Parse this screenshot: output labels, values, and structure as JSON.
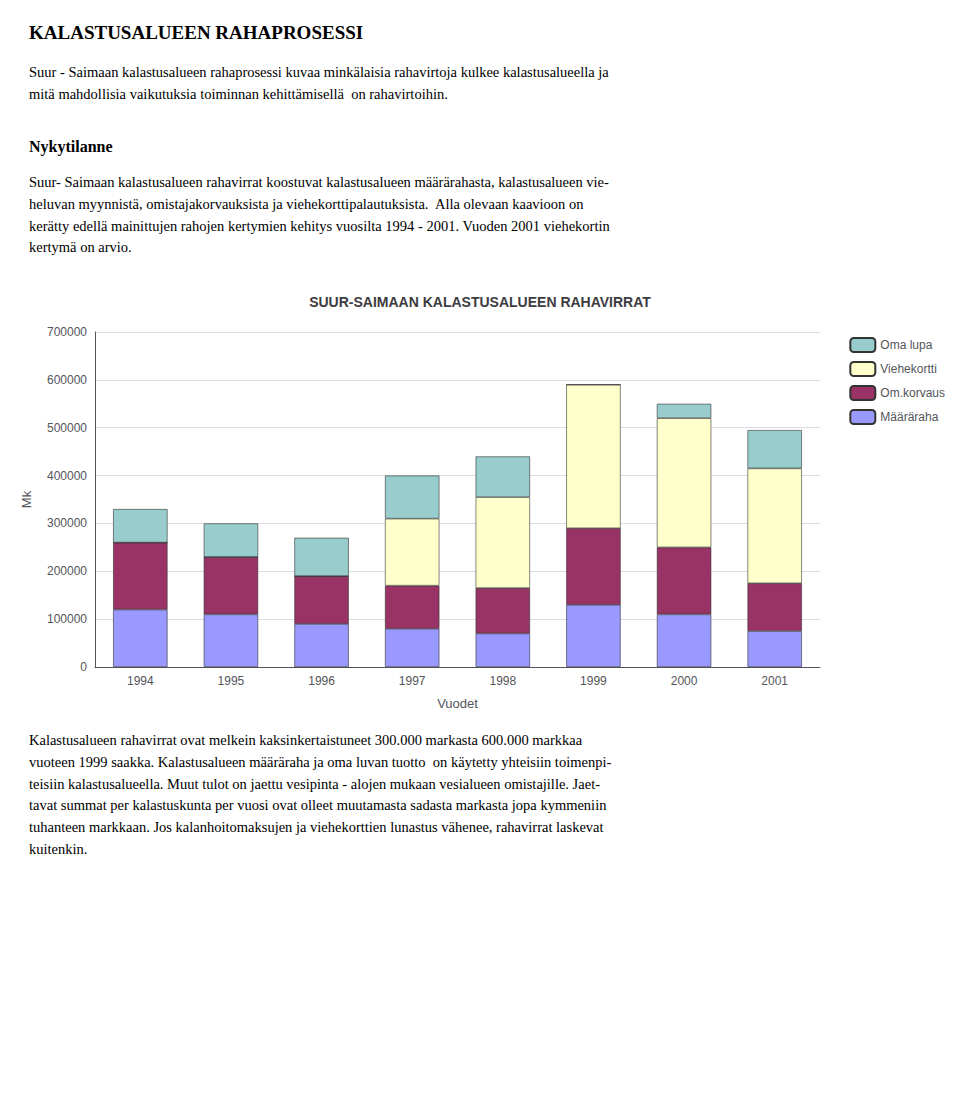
{
  "page_title": "KALASTUSALUEEN RAHAPROSESSI",
  "para1": "Suur - Saimaan kalastusalueen rahaprosessi kuvaa minkälaisia rahavirtoja kulkee kalastusalueella ja\nmitä mahdollisia vaikutuksia toiminnan kehittämisellä  on rahavirtoihin.",
  "section_title": "Nykytilanne",
  "para2": "Suur- Saimaan kalastusalueen rahavirrat koostuvat kalastusalueen määrärahasta, kalastusalueen vie-\nheluvan myynnistä, omistajakorvauksista ja viehekorttipalautuksista.  Alla olevaan kaavioon on\nkerätty edellä mainittujen rahojen kertymien kehitys vuosilta 1994 - 2001. Vuoden 2001 viehekortin\nkertymä on arvio.",
  "para3": "Kalastusalueen rahavirrat ovat melkein kaksinkertaistuneet 300.000 markasta 600.000 markkaa\nvuoteen 1999 saakka. Kalastusalueen määräraha ja oma luvan tuotto  on käytetty yhteisiin toimenpi-\nteisiin kalastusalueella. Muut tulot on jaettu vesipinta - alojen mukaan vesialueen omistajille. Jaet-\ntavat summat per kalastuskunta per vuosi ovat olleet muutamasta sadasta markasta jopa kymmeniin\ntuhanteen markkaan. Jos kalanhoitomaksujen ja viehekorttien lunastus vähenee, rahavirrat laskevat\nkuitenkin.",
  "chart_data": {
    "type": "bar",
    "stacked": true,
    "title": "SUUR-SAIMAAN KALASTUSALUEEN RAHAVIRRAT",
    "xlabel": "Vuodet",
    "ylabel": "Mk",
    "categories": [
      "1994",
      "1995",
      "1996",
      "1997",
      "1998",
      "1999",
      "2000",
      "2001"
    ],
    "series": [
      {
        "name": "Määräraha",
        "color": "#9999ff",
        "values": [
          120000,
          110000,
          90000,
          80000,
          70000,
          130000,
          110000,
          75000
        ]
      },
      {
        "name": "Om.korvaus",
        "color": "#993366",
        "values": [
          140000,
          120000,
          100000,
          90000,
          95000,
          160000,
          140000,
          100000
        ]
      },
      {
        "name": "Viehekortti",
        "color": "#ffffcc",
        "values": [
          0,
          0,
          0,
          140000,
          190000,
          300000,
          270000,
          240000
        ]
      },
      {
        "name": "Oma lupa",
        "color": "#99cccc",
        "values": [
          70000,
          70000,
          80000,
          90000,
          85000,
          0,
          30000,
          80000
        ]
      }
    ],
    "ylim": [
      0,
      700000
    ],
    "yticks": [
      0,
      100000,
      200000,
      300000,
      400000,
      500000,
      600000,
      700000
    ],
    "grid": true,
    "legend": "upper right"
  }
}
